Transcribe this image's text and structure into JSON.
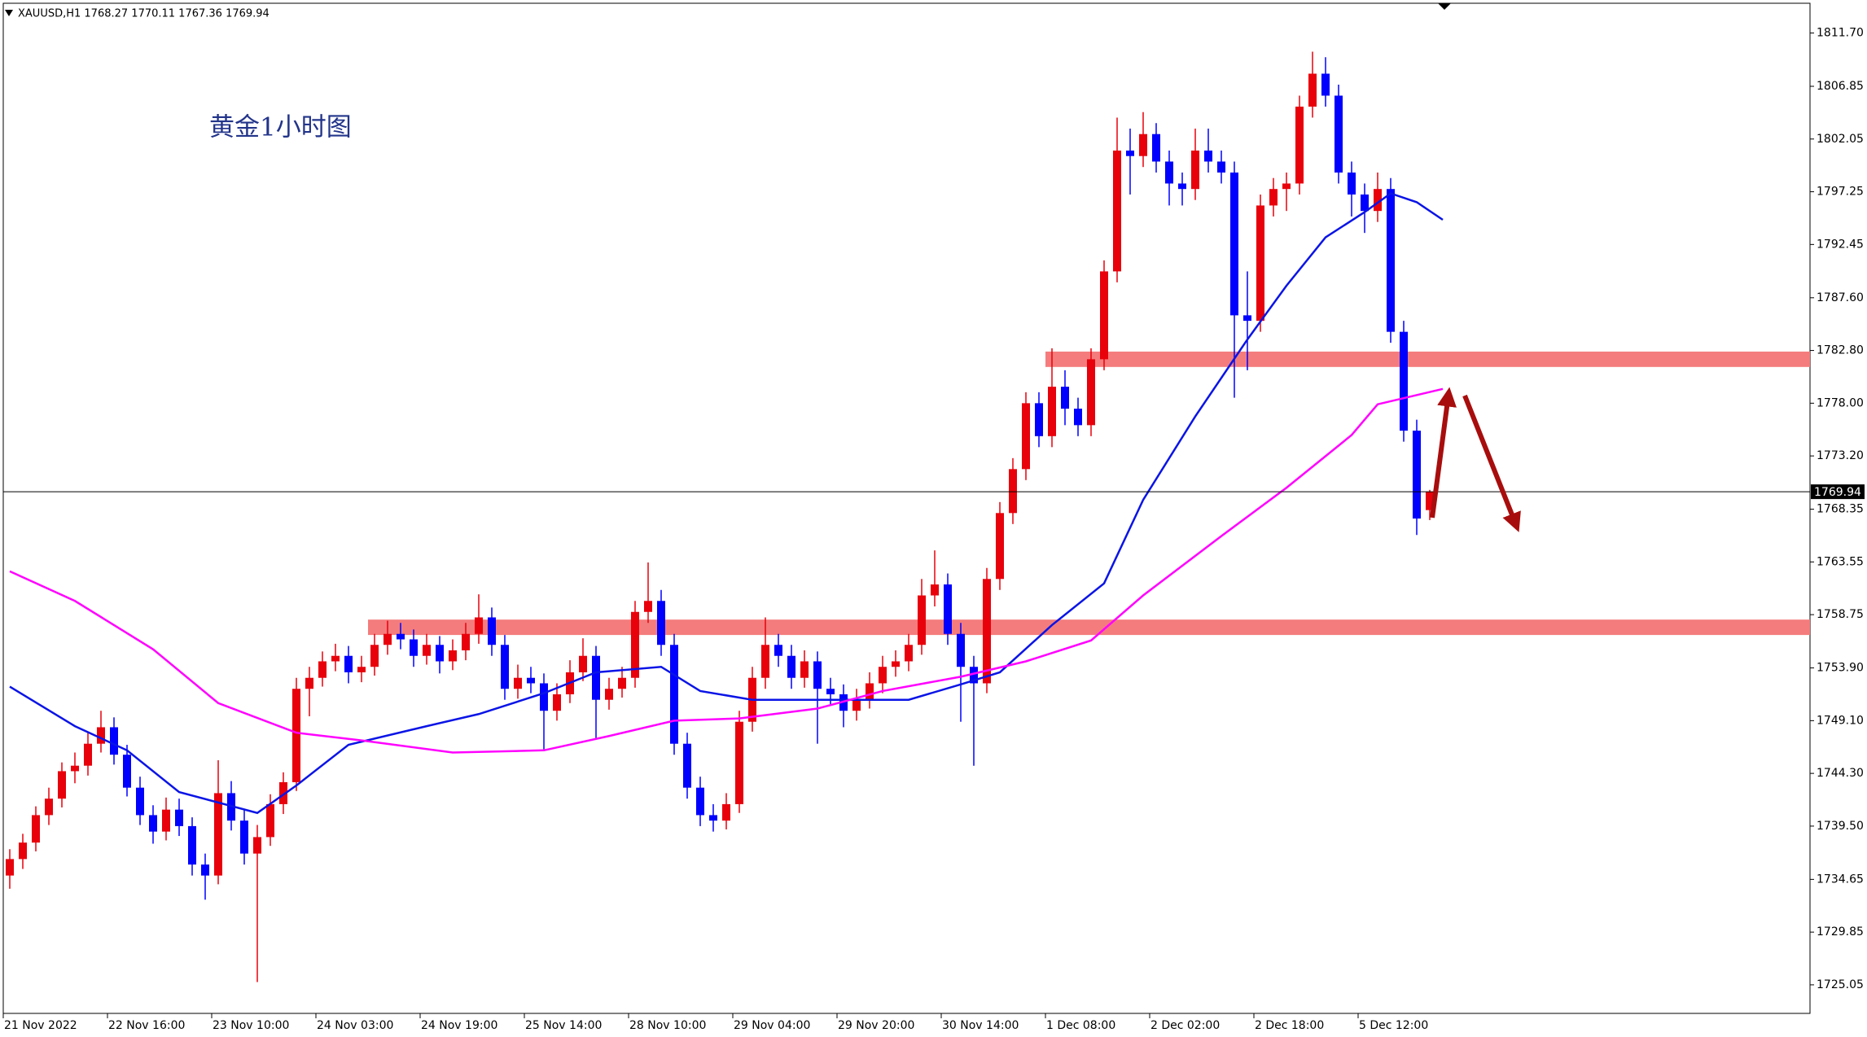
{
  "chart_data": {
    "type": "candlestick",
    "title": "XAUUSD,H1  1768.27 1770.11 1767.36 1769.94",
    "annotation": "黄金1小时图",
    "up_color": "#e8000b",
    "down_color": "#0000ff",
    "ylim": [
      1722.45,
      1814.41
    ],
    "yticks": [
      {
        "value": 1811.7,
        "label": "1811.70"
      },
      1806.85,
      1802.05,
      1797.25,
      1792.45,
      {
        "value": 1787.6,
        "label": "1787.60"
      },
      {
        "value": 1782.8,
        "label": "1782.80"
      },
      {
        "value": 1778,
        "label": "1778.00"
      },
      {
        "value": 1773.2,
        "label": "1773.20"
      },
      1768.35,
      1763.55,
      1758.75,
      {
        "value": 1753.9,
        "label": "1753.90"
      },
      {
        "value": 1749.1,
        "label": "1749.10"
      },
      {
        "value": 1744.3,
        "label": "1744.30"
      },
      {
        "value": 1739.5,
        "label": "1739.50"
      },
      1734.65,
      1729.85,
      1725.05
    ],
    "categories": [
      "21 Nov 2022",
      null,
      null,
      null,
      null,
      null,
      null,
      null,
      "22 Nov 16:00",
      null,
      null,
      null,
      null,
      null,
      null,
      null,
      "23 Nov 10:00",
      null,
      null,
      null,
      null,
      null,
      null,
      null,
      "24 Nov 03:00",
      null,
      null,
      null,
      null,
      null,
      null,
      null,
      "24 Nov 19:00",
      null,
      null,
      null,
      null,
      null,
      null,
      null,
      "25 Nov 14:00",
      null,
      null,
      null,
      null,
      null,
      null,
      null,
      "28 Nov 10:00",
      null,
      null,
      null,
      null,
      null,
      null,
      null,
      "29 Nov 04:00",
      null,
      null,
      null,
      null,
      null,
      null,
      null,
      "29 Nov 20:00",
      null,
      null,
      null,
      null,
      null,
      null,
      null,
      "30 Nov 14:00",
      null,
      null,
      null,
      null,
      null,
      null,
      null,
      "1 Dec 08:00",
      null,
      null,
      null,
      null,
      null,
      null,
      null,
      "2 Dec 02:00",
      null,
      null,
      null,
      null,
      null,
      null,
      null,
      "2 Dec 18:00",
      null,
      null,
      null,
      null,
      null,
      null,
      null,
      "5 Dec 12:00",
      null,
      null,
      null,
      null,
      null
    ],
    "candles": [
      [
        1735,
        1737.4,
        1733.8,
        1736.5
      ],
      [
        1736.5,
        1738.8,
        1735.6,
        1738
      ],
      [
        1738,
        1741.3,
        1737.2,
        1740.5
      ],
      [
        1740.5,
        1743,
        1739.6,
        1742
      ],
      [
        1742,
        1745.3,
        1741.2,
        1744.5
      ],
      [
        1744.5,
        1746.2,
        1743.4,
        1745
      ],
      [
        1745,
        1748,
        1744.1,
        1747
      ],
      [
        1747,
        1750,
        1746.2,
        1748.5
      ],
      [
        1748.5,
        1749.4,
        1745.1,
        1746
      ],
      [
        1746,
        1746.9,
        1742.2,
        1743
      ],
      [
        1743,
        1744,
        1739.6,
        1740.5
      ],
      [
        1740.5,
        1741.4,
        1737.9,
        1739
      ],
      [
        1739,
        1742.1,
        1738.2,
        1741
      ],
      [
        1741,
        1742,
        1738.6,
        1739.5
      ],
      [
        1739.5,
        1740.3,
        1735,
        1736
      ],
      [
        1736,
        1737,
        1732.8,
        1735
      ],
      [
        1735,
        1745.5,
        1734.2,
        1742.5
      ],
      [
        1742.5,
        1743.6,
        1739.1,
        1740
      ],
      [
        1740,
        1741,
        1736,
        1737
      ],
      [
        1737,
        1739.6,
        1725.3,
        1738.5
      ],
      [
        1738.5,
        1742.4,
        1737.7,
        1741.5
      ],
      [
        1741.5,
        1744.4,
        1740.6,
        1743.5
      ],
      [
        1743.5,
        1753,
        1742.7,
        1752
      ],
      [
        1752,
        1754,
        1749.5,
        1753
      ],
      [
        1753,
        1755.4,
        1752.2,
        1754.5
      ],
      [
        1754.5,
        1756.1,
        1753.6,
        1755
      ],
      [
        1755,
        1755.9,
        1752.5,
        1753.5
      ],
      [
        1753.5,
        1755,
        1752.6,
        1754
      ],
      [
        1754,
        1757,
        1753.2,
        1756
      ],
      [
        1756,
        1758.2,
        1755.1,
        1757
      ],
      [
        1757,
        1758,
        1755.6,
        1756.5
      ],
      [
        1756.5,
        1757.4,
        1754,
        1755
      ],
      [
        1755,
        1757,
        1754.2,
        1756
      ],
      [
        1756,
        1756.8,
        1753.4,
        1754.5
      ],
      [
        1754.5,
        1756.5,
        1753.7,
        1755.5
      ],
      [
        1755.5,
        1758,
        1754.6,
        1757
      ],
      [
        1757,
        1760.6,
        1756.1,
        1758.5
      ],
      [
        1758.5,
        1759.4,
        1755,
        1756
      ],
      [
        1756,
        1756.9,
        1751,
        1752
      ],
      [
        1752,
        1754.2,
        1751.1,
        1753
      ],
      [
        1753,
        1754,
        1751.6,
        1752.5
      ],
      [
        1752.5,
        1753.4,
        1746.5,
        1750
      ],
      [
        1750,
        1752.5,
        1749.1,
        1751.5
      ],
      [
        1751.5,
        1754.6,
        1750.7,
        1753.5
      ],
      [
        1753.5,
        1756.6,
        1752.7,
        1755
      ],
      [
        1755,
        1755.9,
        1747.5,
        1751
      ],
      [
        1751,
        1753,
        1750.1,
        1752
      ],
      [
        1752,
        1754,
        1751.2,
        1753
      ],
      [
        1753,
        1760,
        1752.1,
        1759
      ],
      [
        1759,
        1763.5,
        1758,
        1760
      ],
      [
        1760,
        1761,
        1755,
        1756
      ],
      [
        1756,
        1757,
        1746,
        1747
      ],
      [
        1747,
        1748,
        1742,
        1743
      ],
      [
        1743,
        1744,
        1739.5,
        1740.5
      ],
      [
        1740.5,
        1741.5,
        1739,
        1740
      ],
      [
        1740,
        1742.5,
        1739.2,
        1741.5
      ],
      [
        1741.5,
        1750,
        1740.7,
        1749
      ],
      [
        1749,
        1754,
        1748.1,
        1753
      ],
      [
        1753,
        1758.5,
        1752,
        1756
      ],
      [
        1756,
        1757,
        1754,
        1755
      ],
      [
        1755,
        1756,
        1752,
        1753
      ],
      [
        1753,
        1755.5,
        1752.1,
        1754.5
      ],
      [
        1754.5,
        1755.4,
        1747,
        1752
      ],
      [
        1752,
        1753,
        1750.6,
        1751.5
      ],
      [
        1751.5,
        1752.4,
        1748.5,
        1750
      ],
      [
        1750,
        1752,
        1749.1,
        1751
      ],
      [
        1751,
        1753.5,
        1750.2,
        1752.5
      ],
      [
        1752.5,
        1755,
        1751.6,
        1754
      ],
      [
        1754,
        1755.5,
        1753.1,
        1754.5
      ],
      [
        1754.5,
        1757,
        1753.6,
        1756
      ],
      [
        1756,
        1762,
        1755.1,
        1760.5
      ],
      [
        1760.5,
        1764.6,
        1759.5,
        1761.5
      ],
      [
        1761.5,
        1762.5,
        1756,
        1757
      ],
      [
        1757,
        1758,
        1749,
        1754
      ],
      [
        1754,
        1755,
        1745,
        1752.5
      ],
      [
        1752.5,
        1763,
        1751.6,
        1762
      ],
      [
        1762,
        1769,
        1761,
        1768
      ],
      [
        1768,
        1773,
        1767,
        1772
      ],
      [
        1772,
        1779,
        1771,
        1778
      ],
      [
        1778,
        1779,
        1774,
        1775
      ],
      [
        1775,
        1783,
        1774,
        1779.5
      ],
      [
        1779.5,
        1781,
        1776,
        1777.5
      ],
      [
        1777.5,
        1778.5,
        1775,
        1776
      ],
      [
        1776,
        1783,
        1775,
        1782
      ],
      [
        1782,
        1791,
        1781,
        1790
      ],
      [
        1790,
        1804,
        1789,
        1801
      ],
      [
        1801,
        1803,
        1797,
        1800.5
      ],
      [
        1800.5,
        1804.5,
        1799.5,
        1802.5
      ],
      [
        1802.5,
        1803.5,
        1799,
        1800
      ],
      [
        1800,
        1801,
        1796,
        1798
      ],
      [
        1798,
        1799,
        1796,
        1797.5
      ],
      [
        1797.5,
        1803,
        1796.5,
        1801
      ],
      [
        1801,
        1803,
        1799,
        1800
      ],
      [
        1800,
        1801,
        1798,
        1799
      ],
      [
        1799,
        1800,
        1778.5,
        1786
      ],
      [
        1786,
        1790,
        1781,
        1785.5
      ],
      [
        1785.5,
        1797,
        1784.5,
        1796
      ],
      [
        1796,
        1798.5,
        1795,
        1797.5
      ],
      [
        1797.5,
        1799,
        1795.5,
        1798
      ],
      [
        1798,
        1806,
        1797,
        1805
      ],
      [
        1805,
        1810,
        1804,
        1808
      ],
      [
        1808,
        1809.5,
        1805,
        1806
      ],
      [
        1806,
        1807,
        1798,
        1799
      ],
      [
        1799,
        1800,
        1795,
        1797
      ],
      [
        1797,
        1798,
        1793.5,
        1795.5
      ],
      [
        1795.5,
        1799,
        1794.5,
        1797.5
      ],
      [
        1797.5,
        1798.5,
        1783.5,
        1784.5
      ],
      [
        1784.5,
        1785.5,
        1774.5,
        1775.5
      ],
      [
        1775.5,
        1776.5,
        1766,
        1767.5
      ],
      [
        1768.27,
        1770.11,
        1767.36,
        1769.94
      ]
    ],
    "moving_averages": [
      {
        "color": "#0a14e6",
        "x": [
          0,
          5,
          9,
          13,
          19,
          22,
          26,
          32,
          36,
          41,
          45,
          50,
          53,
          57,
          64,
          69,
          73,
          76,
          80,
          84,
          87,
          91,
          95,
          98,
          101,
          104,
          106,
          108,
          110
        ],
        "values": [
          1752.2,
          1748.6,
          1746.4,
          1742.6,
          1740.7,
          1743.2,
          1746.9,
          1748.6,
          1749.7,
          1751.6,
          1753.5,
          1754,
          1751.8,
          1751,
          1751,
          1751,
          1752.4,
          1753.5,
          1757.8,
          1761.6,
          1769.2,
          1776.8,
          1783.8,
          1788.7,
          1793.1,
          1795.4,
          1797.1,
          1796.3,
          1794.7
        ]
      },
      {
        "color": "#ff00ff",
        "x": [
          0,
          5,
          11,
          16,
          22,
          27,
          34,
          41,
          46,
          51,
          56,
          62,
          67,
          73,
          78,
          83,
          87,
          93,
          98,
          103,
          105,
          110
        ],
        "values": [
          1762.7,
          1760,
          1755.6,
          1750.7,
          1748,
          1747.3,
          1746.2,
          1746.4,
          1747.7,
          1749.1,
          1749.3,
          1750.2,
          1751.8,
          1753.1,
          1754.5,
          1756.4,
          1760.5,
          1765.9,
          1770.3,
          1775.1,
          1777.9,
          1779.3
        ]
      }
    ],
    "zones": [
      {
        "from": 1781.3,
        "to": 1782.7,
        "start": 80,
        "color": "#f47c7c"
      },
      {
        "from": 1756.9,
        "to": 1758.3,
        "start": 28,
        "color": "#f47c7c"
      }
    ],
    "last_price": 1769.94
  }
}
